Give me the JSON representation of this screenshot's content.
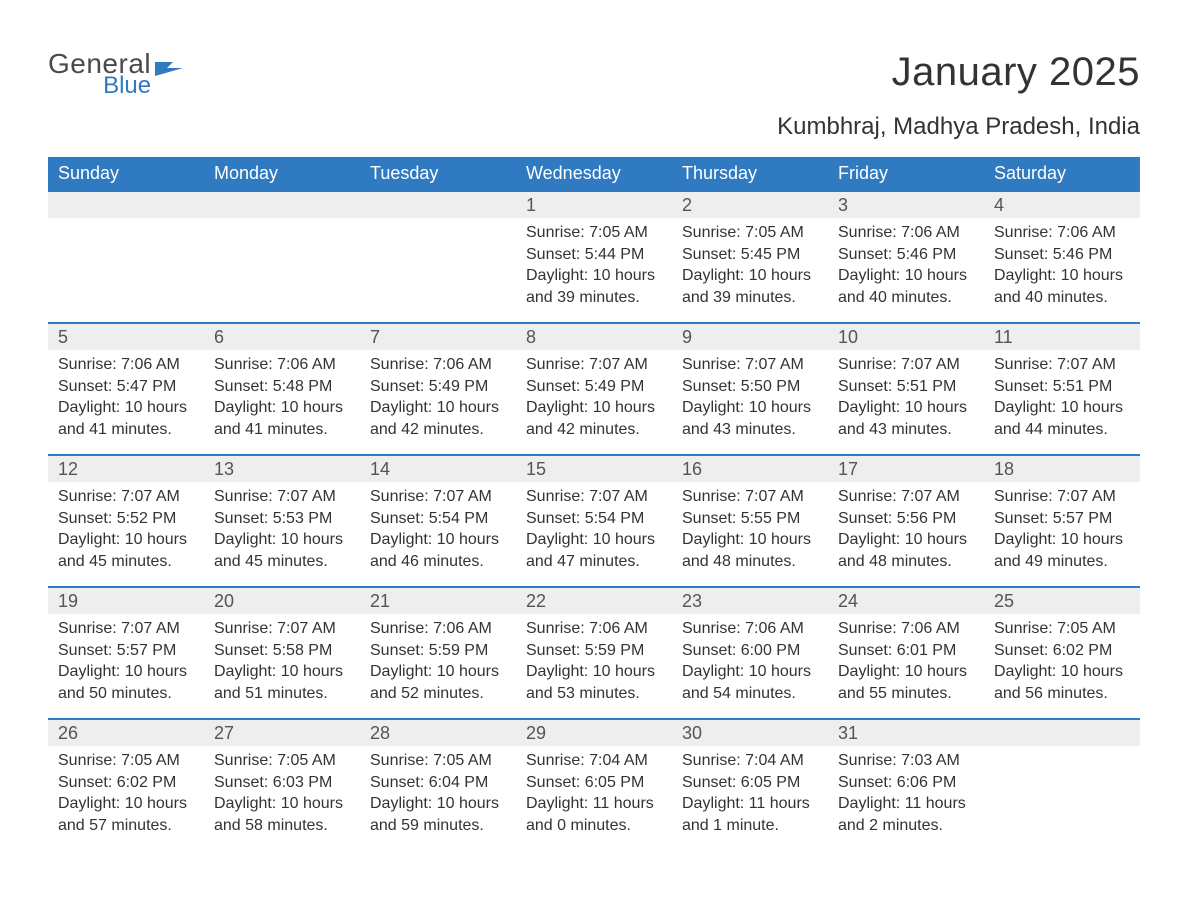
{
  "logo": {
    "word1": "General",
    "word2": "Blue"
  },
  "title": "January 2025",
  "location": "Kumbhraj, Madhya Pradesh, India",
  "colors": {
    "header_bg": "#2f7ac0",
    "header_text": "#ffffff",
    "daynum_bg": "#eeeeee",
    "border": "#2f7ac0",
    "body_text": "#333333",
    "logo_gray": "#4a4a4a",
    "logo_blue": "#2f7ac0",
    "page_bg": "#ffffff"
  },
  "typography": {
    "month_title_pt": 30,
    "location_pt": 18,
    "weekday_pt": 14,
    "daynum_pt": 14,
    "body_pt": 12,
    "family": "Arial"
  },
  "layout": {
    "columns": 7,
    "rows": 5,
    "first_weekday_index": 3
  },
  "weekdays": [
    "Sunday",
    "Monday",
    "Tuesday",
    "Wednesday",
    "Thursday",
    "Friday",
    "Saturday"
  ],
  "labels": {
    "sunrise": "Sunrise:",
    "sunset": "Sunset:",
    "daylight": "Daylight:"
  },
  "days": [
    {
      "n": 1,
      "sunrise": "7:05 AM",
      "sunset": "5:44 PM",
      "daylight": "10 hours and 39 minutes."
    },
    {
      "n": 2,
      "sunrise": "7:05 AM",
      "sunset": "5:45 PM",
      "daylight": "10 hours and 39 minutes."
    },
    {
      "n": 3,
      "sunrise": "7:06 AM",
      "sunset": "5:46 PM",
      "daylight": "10 hours and 40 minutes."
    },
    {
      "n": 4,
      "sunrise": "7:06 AM",
      "sunset": "5:46 PM",
      "daylight": "10 hours and 40 minutes."
    },
    {
      "n": 5,
      "sunrise": "7:06 AM",
      "sunset": "5:47 PM",
      "daylight": "10 hours and 41 minutes."
    },
    {
      "n": 6,
      "sunrise": "7:06 AM",
      "sunset": "5:48 PM",
      "daylight": "10 hours and 41 minutes."
    },
    {
      "n": 7,
      "sunrise": "7:06 AM",
      "sunset": "5:49 PM",
      "daylight": "10 hours and 42 minutes."
    },
    {
      "n": 8,
      "sunrise": "7:07 AM",
      "sunset": "5:49 PM",
      "daylight": "10 hours and 42 minutes."
    },
    {
      "n": 9,
      "sunrise": "7:07 AM",
      "sunset": "5:50 PM",
      "daylight": "10 hours and 43 minutes."
    },
    {
      "n": 10,
      "sunrise": "7:07 AM",
      "sunset": "5:51 PM",
      "daylight": "10 hours and 43 minutes."
    },
    {
      "n": 11,
      "sunrise": "7:07 AM",
      "sunset": "5:51 PM",
      "daylight": "10 hours and 44 minutes."
    },
    {
      "n": 12,
      "sunrise": "7:07 AM",
      "sunset": "5:52 PM",
      "daylight": "10 hours and 45 minutes."
    },
    {
      "n": 13,
      "sunrise": "7:07 AM",
      "sunset": "5:53 PM",
      "daylight": "10 hours and 45 minutes."
    },
    {
      "n": 14,
      "sunrise": "7:07 AM",
      "sunset": "5:54 PM",
      "daylight": "10 hours and 46 minutes."
    },
    {
      "n": 15,
      "sunrise": "7:07 AM",
      "sunset": "5:54 PM",
      "daylight": "10 hours and 47 minutes."
    },
    {
      "n": 16,
      "sunrise": "7:07 AM",
      "sunset": "5:55 PM",
      "daylight": "10 hours and 48 minutes."
    },
    {
      "n": 17,
      "sunrise": "7:07 AM",
      "sunset": "5:56 PM",
      "daylight": "10 hours and 48 minutes."
    },
    {
      "n": 18,
      "sunrise": "7:07 AM",
      "sunset": "5:57 PM",
      "daylight": "10 hours and 49 minutes."
    },
    {
      "n": 19,
      "sunrise": "7:07 AM",
      "sunset": "5:57 PM",
      "daylight": "10 hours and 50 minutes."
    },
    {
      "n": 20,
      "sunrise": "7:07 AM",
      "sunset": "5:58 PM",
      "daylight": "10 hours and 51 minutes."
    },
    {
      "n": 21,
      "sunrise": "7:06 AM",
      "sunset": "5:59 PM",
      "daylight": "10 hours and 52 minutes."
    },
    {
      "n": 22,
      "sunrise": "7:06 AM",
      "sunset": "5:59 PM",
      "daylight": "10 hours and 53 minutes."
    },
    {
      "n": 23,
      "sunrise": "7:06 AM",
      "sunset": "6:00 PM",
      "daylight": "10 hours and 54 minutes."
    },
    {
      "n": 24,
      "sunrise": "7:06 AM",
      "sunset": "6:01 PM",
      "daylight": "10 hours and 55 minutes."
    },
    {
      "n": 25,
      "sunrise": "7:05 AM",
      "sunset": "6:02 PM",
      "daylight": "10 hours and 56 minutes."
    },
    {
      "n": 26,
      "sunrise": "7:05 AM",
      "sunset": "6:02 PM",
      "daylight": "10 hours and 57 minutes."
    },
    {
      "n": 27,
      "sunrise": "7:05 AM",
      "sunset": "6:03 PM",
      "daylight": "10 hours and 58 minutes."
    },
    {
      "n": 28,
      "sunrise": "7:05 AM",
      "sunset": "6:04 PM",
      "daylight": "10 hours and 59 minutes."
    },
    {
      "n": 29,
      "sunrise": "7:04 AM",
      "sunset": "6:05 PM",
      "daylight": "11 hours and 0 minutes."
    },
    {
      "n": 30,
      "sunrise": "7:04 AM",
      "sunset": "6:05 PM",
      "daylight": "11 hours and 1 minute."
    },
    {
      "n": 31,
      "sunrise": "7:03 AM",
      "sunset": "6:06 PM",
      "daylight": "11 hours and 2 minutes."
    }
  ]
}
